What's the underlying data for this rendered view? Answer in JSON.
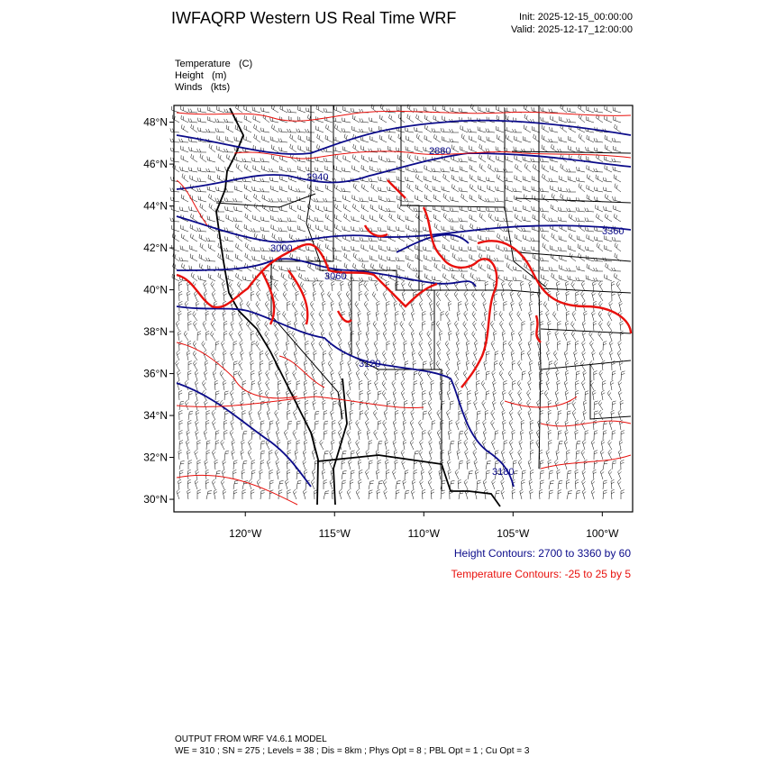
{
  "header": {
    "title": "IWFAQRP Western US Real Time WRF",
    "init": "Init: 2025-12-15_00:00:00",
    "valid": "Valid: 2025-12-17_12:00:00"
  },
  "fields": [
    {
      "name": "Temperature",
      "unit": "(C)"
    },
    {
      "name": "Height",
      "unit": "(m)"
    },
    {
      "name": "Winds",
      "unit": "(kts)"
    }
  ],
  "map": {
    "lon_range": [
      -124,
      -98.3
    ],
    "lat_range": [
      29.4,
      48.8
    ],
    "lat_ticks": [
      "30°N",
      "32°N",
      "34°N",
      "36°N",
      "38°N",
      "40°N",
      "42°N",
      "44°N",
      "46°N",
      "48°N"
    ],
    "lon_ticks": [
      "120°W",
      "115°W",
      "110°W",
      "105°W",
      "100°W"
    ],
    "height_labels": [
      "2880",
      "2940",
      "3000",
      "3060",
      "3120",
      "3180",
      "3360"
    ],
    "colors": {
      "height": "#0b0b8a",
      "temperature": "#e8100c",
      "barbs": "#000000",
      "borders": "#000000"
    }
  },
  "legend": {
    "height": "Height Contours: 2700 to 3360 by 60",
    "temperature": "Temperature Contours: -25 to 25 by 5"
  },
  "footer": {
    "line1": "OUTPUT FROM WRF V4.6.1 MODEL",
    "line2": "WE = 310 ; SN = 275 ; Levels = 38 ; Dis = 8km ; Phys Opt = 8 ; PBL Opt = 1 ; Cu Opt = 3"
  }
}
